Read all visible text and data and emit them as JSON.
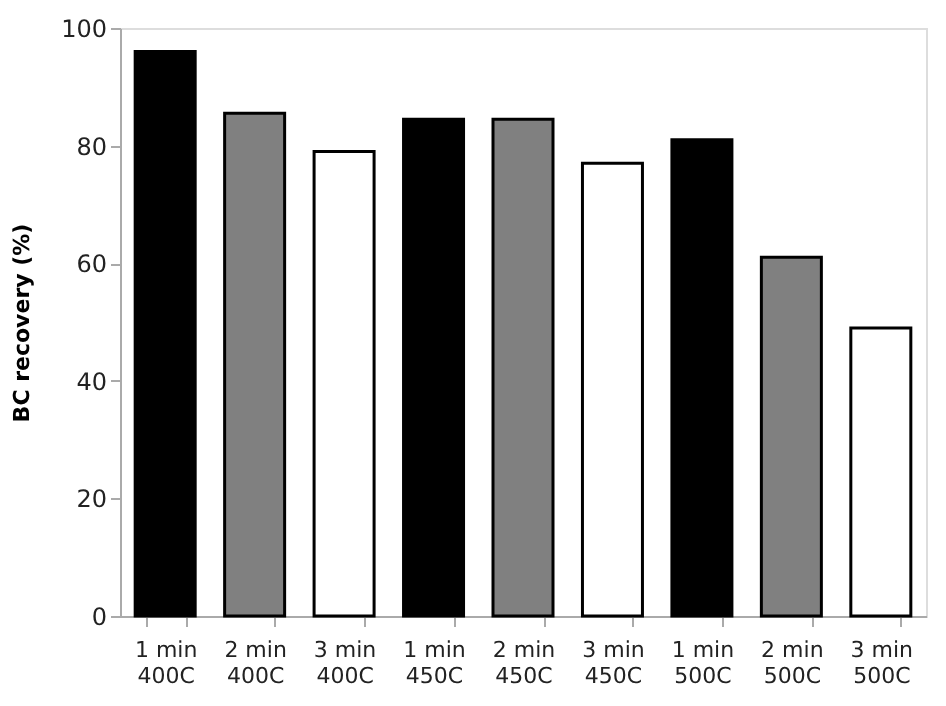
{
  "chart_data": {
    "type": "bar",
    "ylabel": "BC recovery (%)",
    "categories": [
      "1 min 400C",
      "2 min 400C",
      "3 min 400C",
      "1 min 450C",
      "2 min 450C",
      "3 min 450C",
      "1 min 500C",
      "2 min 500C",
      "3 min 500C"
    ],
    "values": [
      96,
      85.5,
      79,
      84.5,
      84.5,
      77,
      81,
      61,
      49
    ],
    "colors": [
      "#000000",
      "#808080",
      "#ffffff",
      "#000000",
      "#808080",
      "#ffffff",
      "#000000",
      "#808080",
      "#ffffff"
    ],
    "ylim": [
      0,
      100
    ],
    "yticks": [
      0,
      20,
      40,
      60,
      80,
      100
    ],
    "grid": false
  }
}
